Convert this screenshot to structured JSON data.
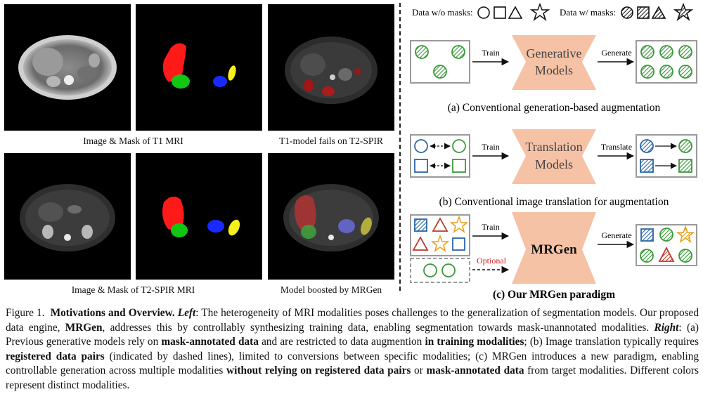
{
  "left": {
    "captions": [
      "Image & Mask of T1 MRI",
      "T1-model fails on T2-SPIR",
      "Image & Mask of T2-SPIR MRI",
      "Model boosted by MRGen"
    ]
  },
  "right": {
    "legend": {
      "without_masks": "Data w/o masks:",
      "with_masks": "Data w/ masks:"
    },
    "a": {
      "arrow_in": "Train",
      "box": [
        "Generative",
        "Models"
      ],
      "arrow_out": "Generate",
      "caption": "(a) Conventional generation-based augmentation"
    },
    "b": {
      "arrow_in": "Train",
      "box": [
        "Translation",
        "Models"
      ],
      "arrow_out": "Translate",
      "caption": "(b) Conventional image translation for augmentation"
    },
    "c": {
      "arrow_in": "Train",
      "optional": "Optional",
      "box": "MRGen",
      "arrow_out": "Generate",
      "caption": "(c) Our MRGen paradigm"
    }
  },
  "figure_caption": {
    "label": "Figure 1.",
    "title": "Motivations and Overview.",
    "left_label": "Left",
    "text1": ": The heterogeneity of MRI modalities poses challenges to the generalization of segmentation models. Our proposed data engine, ",
    "mrgen": "MRGen",
    "text2": ", addresses this by controllably synthesizing training data, enabling segmentation towards mask-unannotated modalities. ",
    "right_label": "Right",
    "text3": ": (a) Previous generative models rely on ",
    "b1": "mask-annotated data",
    "text4": " and are restricted to data augmention ",
    "b2": "in training modalities",
    "text5": "; (b) Image translation typically requires ",
    "b3": "registered data pairs",
    "text6": " (indicated by dashed lines), limited to conversions between specific modalities; (c) MRGen introduces a new paradigm, enabling controllable generation across multiple modalities ",
    "b4": "without relying on registered data pairs",
    "text7": " or ",
    "b5": "mask-annotated data",
    "text8": " from target modalities. Different colors represent distinct modalities."
  },
  "colors": {
    "green": "#3a9a3a",
    "blue": "#2a66a8",
    "red": "#c0392b",
    "orange": "#e8a020",
    "peach": "#f6c2a6",
    "gray_border": "#9a9a9a",
    "dashed_red": "#d62020"
  }
}
